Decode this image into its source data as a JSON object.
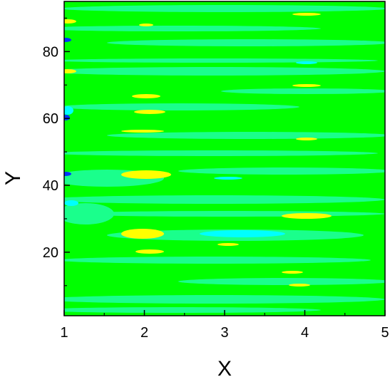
{
  "chart_data": {
    "type": "contour",
    "x_label": "X",
    "y_label": "Y",
    "xlim": [
      1,
      5
    ],
    "xticks": [
      1,
      2,
      3,
      4,
      5
    ],
    "ylim": [
      1,
      95
    ],
    "yticks": [
      20,
      40,
      60,
      80
    ],
    "color": "#00ff00"
  }
}
